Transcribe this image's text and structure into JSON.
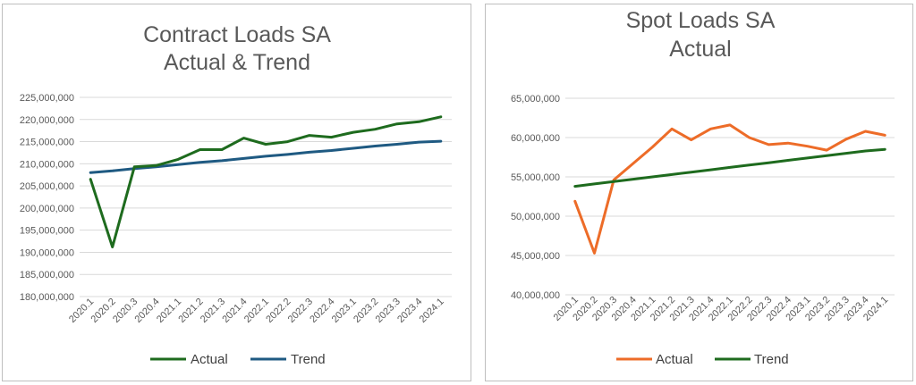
{
  "charts": [
    {
      "title_line1": "Contract Loads SA",
      "title_line2": "Actual & Trend",
      "yticks": [
        "180,000,000",
        "185,000,000",
        "190,000,000",
        "195,000,000",
        "200,000,000",
        "205,000,000",
        "210,000,000",
        "215,000,000",
        "220,000,000",
        "225,000,000"
      ],
      "legend": [
        "Actual",
        "Trend"
      ],
      "colors": {
        "Actual": "#1e6b1e",
        "Trend": "#1f5a82"
      }
    },
    {
      "title_line1": "Spot Loads SA",
      "title_line2": "Actual",
      "yticks": [
        "40,000,000",
        "45,000,000",
        "50,000,000",
        "55,000,000",
        "60,000,000",
        "65,000,000"
      ],
      "legend": [
        "Actual",
        "Trend"
      ],
      "colors": {
        "Actual": "#ed6c28",
        "Trend": "#1e6b1e"
      }
    }
  ],
  "chart_data": [
    {
      "type": "line",
      "title": "Contract Loads SA Actual & Trend",
      "categories": [
        "2020.1",
        "2020.2",
        "2020.3",
        "2020.4",
        "2021.1",
        "2021.2",
        "2021.3",
        "2021.4",
        "2022.1",
        "2022.2",
        "2022.3",
        "2022.4",
        "2023.1",
        "2023.2",
        "2023.3",
        "2023.4",
        "2024.1"
      ],
      "ylim": [
        180000000,
        225000000
      ],
      "grid": true,
      "legend_position": "bottom",
      "series": [
        {
          "name": "Actual",
          "values": [
            206500000,
            191200000,
            209300000,
            209600000,
            211000000,
            213200000,
            213200000,
            215800000,
            214400000,
            215000000,
            216400000,
            216000000,
            217100000,
            217800000,
            219000000,
            219500000,
            220600000
          ]
        },
        {
          "name": "Trend",
          "values": [
            208000000,
            208400000,
            208900000,
            209300000,
            209800000,
            210300000,
            210700000,
            211200000,
            211700000,
            212100000,
            212600000,
            213000000,
            213500000,
            214000000,
            214400000,
            214900000,
            215100000
          ]
        }
      ]
    },
    {
      "type": "line",
      "title": "Spot Loads SA Actual",
      "categories": [
        "2020.1",
        "2020.2",
        "2020.3",
        "2020.4",
        "2021.1",
        "2021.2",
        "2021.3",
        "2021.4",
        "2022.1",
        "2022.2",
        "2022.3",
        "2022.4",
        "2023.1",
        "2023.2",
        "2023.3",
        "2023.4",
        "2024.1"
      ],
      "ylim": [
        40000000,
        65000000
      ],
      "grid": true,
      "legend_position": "bottom",
      "series": [
        {
          "name": "Actual",
          "values": [
            51900000,
            45300000,
            54600000,
            56700000,
            58800000,
            61100000,
            59700000,
            61100000,
            61600000,
            60000000,
            59100000,
            59300000,
            58900000,
            58400000,
            59800000,
            60800000,
            60300000
          ]
        },
        {
          "name": "Trend",
          "values": [
            53800000,
            54100000,
            54400000,
            54700000,
            55000000,
            55300000,
            55600000,
            55900000,
            56200000,
            56500000,
            56800000,
            57100000,
            57400000,
            57700000,
            58000000,
            58300000,
            58500000
          ]
        }
      ]
    }
  ]
}
